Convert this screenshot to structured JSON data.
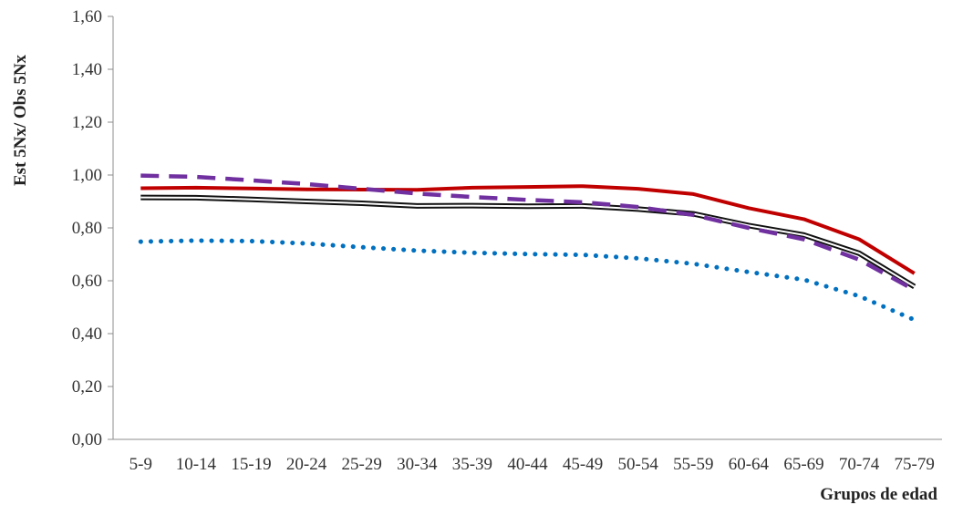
{
  "chart_data": {
    "type": "line",
    "title": "",
    "xlabel": "Grupos de edad",
    "ylabel": "Est 5Nx/ Obs 5Nx",
    "ylim": [
      0,
      1.6
    ],
    "yticks": [
      "0,00",
      "0,20",
      "0,40",
      "0,60",
      "0,80",
      "1,00",
      "1,20",
      "1,40",
      "1,60"
    ],
    "grid": false,
    "legend": "none",
    "categories": [
      "5-9",
      "10-14",
      "15-19",
      "20-24",
      "25-29",
      "30-34",
      "35-39",
      "40-44",
      "45-49",
      "50-54",
      "55-59",
      "60-64",
      "65-69",
      "70-74",
      "75-79"
    ],
    "series": [
      {
        "values": [
          0.95,
          0.952,
          0.949,
          0.946,
          0.945,
          0.944,
          0.952,
          0.955,
          0.958,
          0.948,
          0.928,
          0.875,
          0.833,
          0.757,
          0.628
        ],
        "color": "#c00000",
        "style": "solid"
      },
      {
        "values": [
          0.915,
          0.914,
          0.908,
          0.9,
          0.893,
          0.883,
          0.884,
          0.882,
          0.883,
          0.871,
          0.853,
          0.809,
          0.773,
          0.704,
          0.578
        ],
        "color": "#111111",
        "style": "double"
      },
      {
        "values": [
          0.998,
          0.993,
          0.98,
          0.966,
          0.948,
          0.93,
          0.917,
          0.906,
          0.897,
          0.879,
          0.849,
          0.8,
          0.757,
          0.68,
          0.565
        ],
        "color": "#7030a0",
        "style": "dashed"
      },
      {
        "values": [
          0.748,
          0.752,
          0.75,
          0.741,
          0.727,
          0.714,
          0.706,
          0.701,
          0.698,
          0.685,
          0.664,
          0.633,
          0.604,
          0.542,
          0.452
        ],
        "color": "#0070c0",
        "style": "dotted"
      }
    ]
  }
}
